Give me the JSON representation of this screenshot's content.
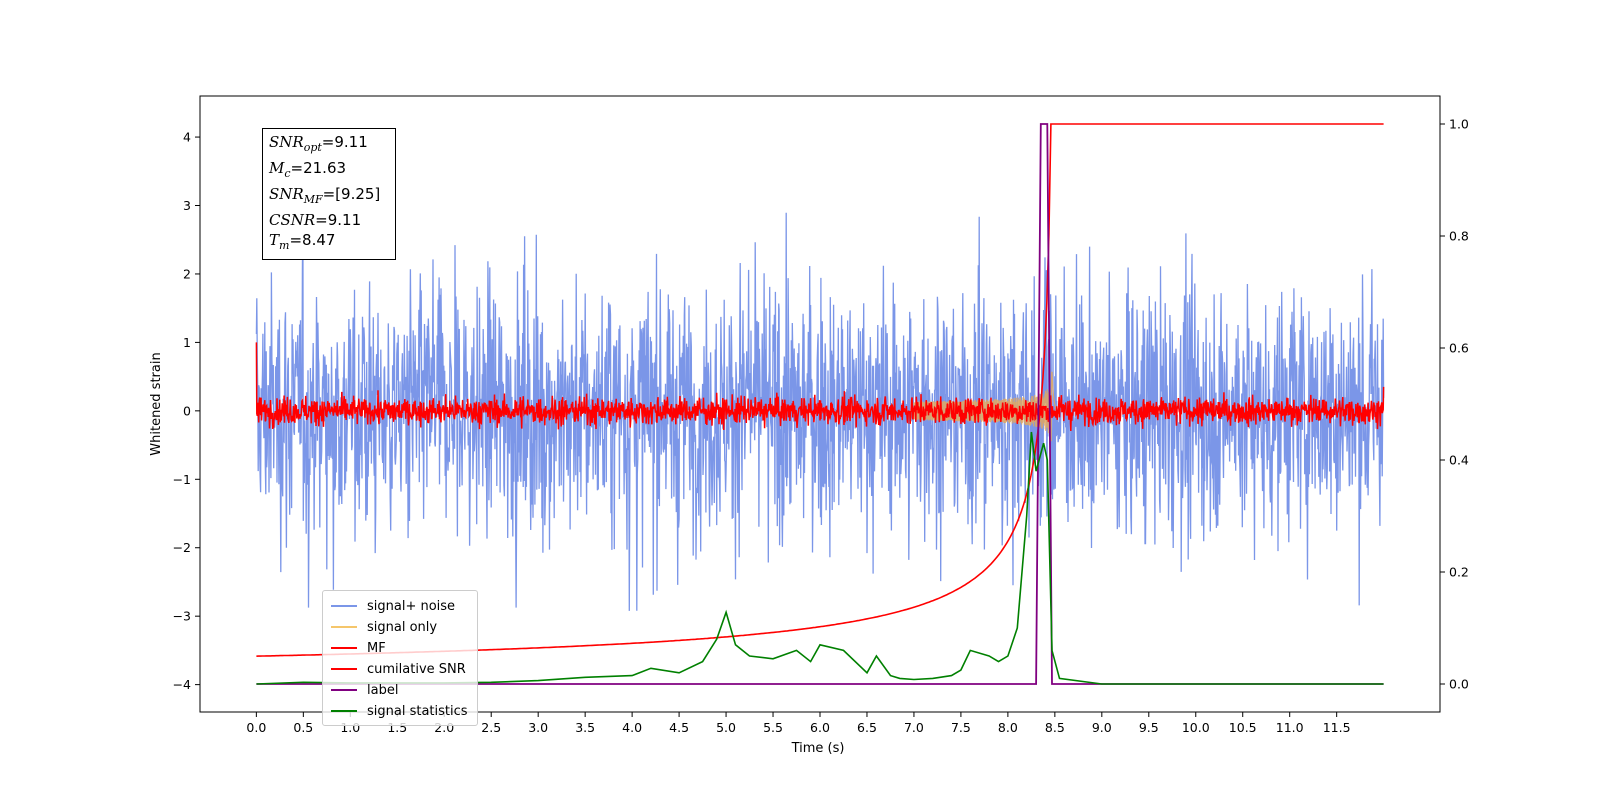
{
  "chart_data": {
    "type": "line",
    "xlabel": "Time (s)",
    "ylabel": "Whitened strain",
    "xlim": [
      -0.6,
      12.6
    ],
    "ylim": [
      -4.4,
      4.6
    ],
    "y2lim": [
      -0.05,
      1.05
    ],
    "x_ticks": [
      "0.0",
      "0.5",
      "1.0",
      "1.5",
      "2.0",
      "2.5",
      "3.0",
      "3.5",
      "4.0",
      "4.5",
      "5.0",
      "5.5",
      "6.0",
      "6.5",
      "7.0",
      "7.5",
      "8.0",
      "8.5",
      "9.0",
      "9.5",
      "10.0",
      "10.5",
      "11.0",
      "11.5"
    ],
    "y_ticks": [
      "4",
      "3",
      "2",
      "1",
      "0",
      "−1",
      "−2",
      "−3",
      "−4"
    ],
    "y2_ticks": [
      "1.0",
      "0.8",
      "0.6",
      "0.4",
      "0.2",
      "0.0"
    ],
    "legend_position": "lower-left",
    "annotation": {
      "snr_opt": {
        "sym": "SNR",
        "sub": "opt",
        "value": "=9.11"
      },
      "mc": {
        "sym": "M",
        "sub": "c",
        "value": "=21.63"
      },
      "snr_mf": {
        "sym": "SNR",
        "sub": "MF",
        "value": "=[9.25]"
      },
      "csnr": {
        "sym": "CSNR",
        "sub": "",
        "value": "=9.11"
      },
      "tm": {
        "sym": "T",
        "sub": "m",
        "value": "=8.47"
      }
    },
    "series": [
      {
        "name": "signal+ noise",
        "color": "#4169e1",
        "axis": "left",
        "noise_std": 0.9,
        "x_range": [
          0,
          12
        ]
      },
      {
        "name": "signal only",
        "color": "#f5c66b",
        "axis": "left",
        "merger_time": 8.47,
        "peak_amplitude": 0.6
      },
      {
        "name": "MF",
        "color": "#ff0000",
        "axis": "left",
        "noise_std": 0.1,
        "x_range": [
          0,
          12
        ]
      },
      {
        "name": "cumilative SNR",
        "color": "#ff0000",
        "axis": "right",
        "x": [
          0.0,
          1.0,
          2.0,
          3.0,
          4.0,
          5.0,
          6.0,
          7.0,
          7.5,
          8.0,
          8.2,
          8.35,
          8.45,
          8.5,
          12.0
        ],
        "values": [
          0.03,
          0.04,
          0.05,
          0.065,
          0.08,
          0.1,
          0.13,
          0.18,
          0.22,
          0.29,
          0.35,
          0.45,
          0.7,
          1.0,
          1.0
        ]
      },
      {
        "name": "label",
        "color": "#800080",
        "axis": "right",
        "x": [
          0.0,
          8.3,
          8.35,
          8.42,
          8.47,
          12.0
        ],
        "values": [
          0.0,
          0.0,
          1.0,
          1.0,
          0.0,
          0.0
        ]
      },
      {
        "name": "signal statistics",
        "color": "#008000",
        "axis": "right",
        "x": [
          0.0,
          0.5,
          1.0,
          2.0,
          2.5,
          3.0,
          3.5,
          4.0,
          4.2,
          4.5,
          4.75,
          4.9,
          5.0,
          5.1,
          5.25,
          5.5,
          5.75,
          5.9,
          6.0,
          6.25,
          6.5,
          6.6,
          6.75,
          6.85,
          7.0,
          7.2,
          7.4,
          7.5,
          7.6,
          7.8,
          7.9,
          8.0,
          8.1,
          8.2,
          8.25,
          8.3,
          8.38,
          8.42,
          8.47,
          8.55,
          9.0,
          10.0,
          12.0
        ],
        "values": [
          0.0,
          0.003,
          0.002,
          0.002,
          0.003,
          0.006,
          0.012,
          0.015,
          0.028,
          0.02,
          0.04,
          0.08,
          0.128,
          0.07,
          0.05,
          0.045,
          0.06,
          0.04,
          0.07,
          0.06,
          0.02,
          0.05,
          0.015,
          0.01,
          0.008,
          0.01,
          0.015,
          0.025,
          0.06,
          0.05,
          0.04,
          0.05,
          0.1,
          0.3,
          0.45,
          0.38,
          0.43,
          0.4,
          0.06,
          0.01,
          0.0,
          0.0,
          0.0
        ]
      }
    ]
  }
}
